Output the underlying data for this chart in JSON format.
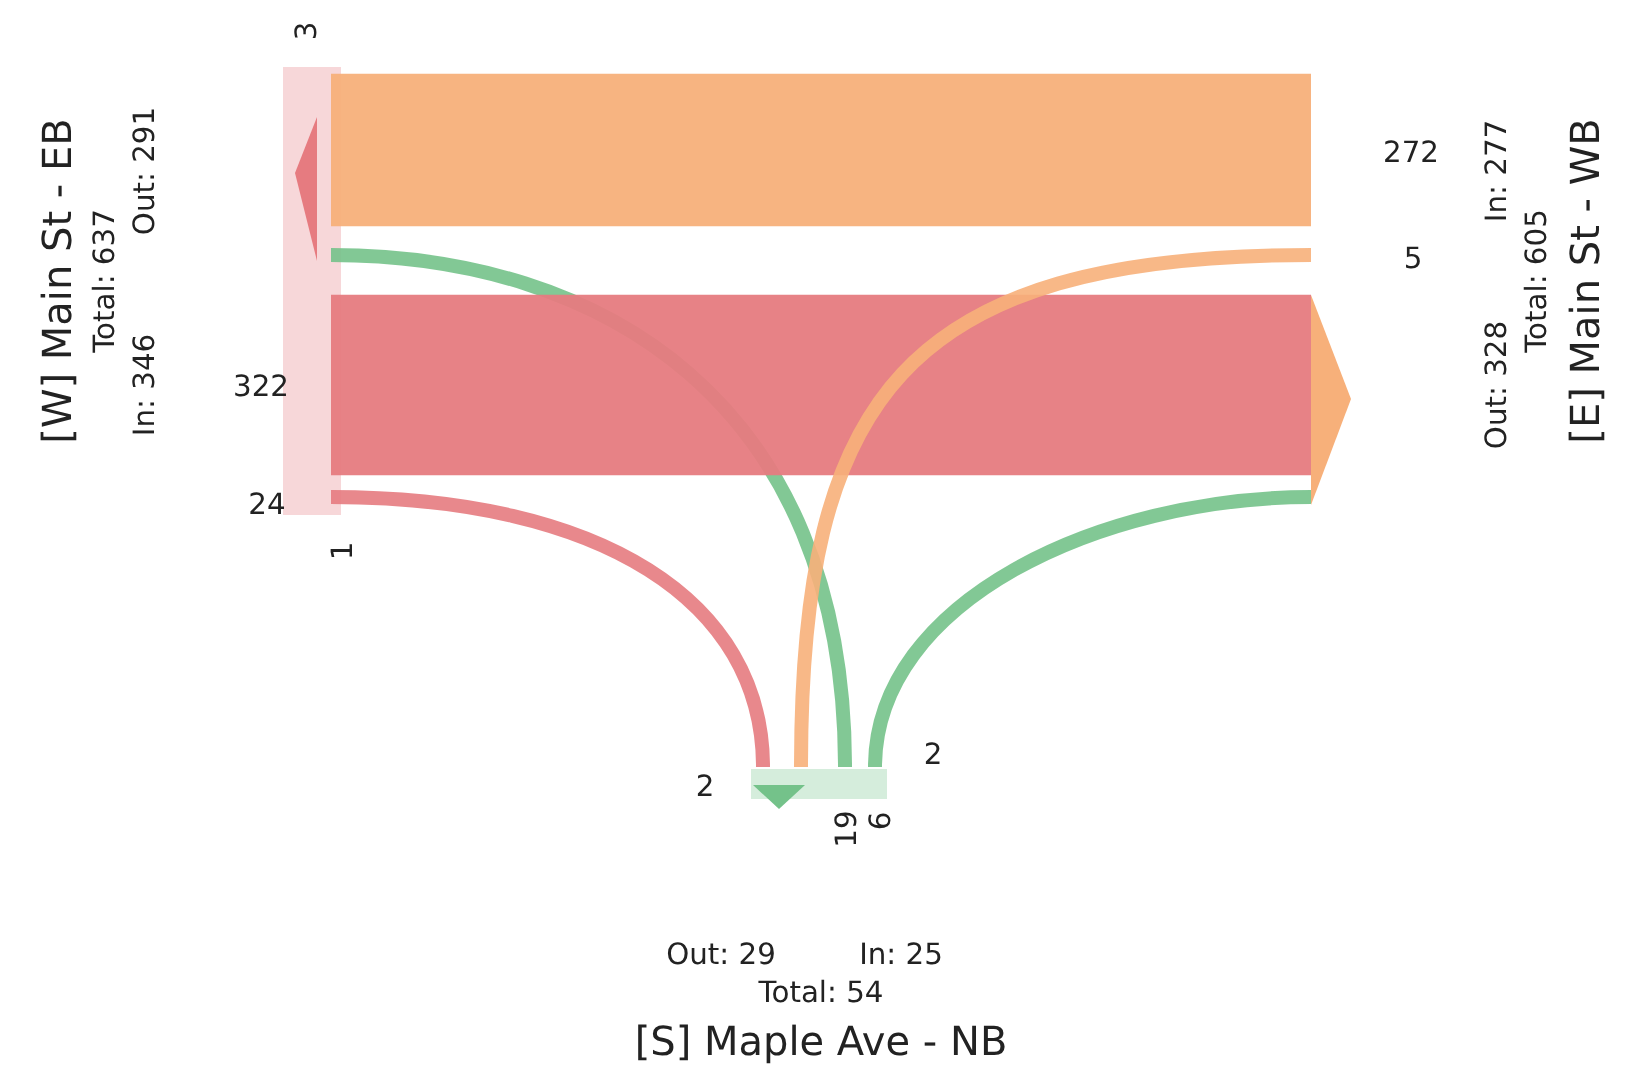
{
  "chart_data": {
    "type": "other",
    "data_labels": true,
    "categories": [
      "[W] Main St - EB",
      "[E] Main St - WB",
      "[S] Maple Ave - NB"
    ],
    "series": [
      {
        "colors": [
          null,
          "#f7b07a",
          "#74c28a"
        ],
        "values": [
          null,
          272,
          19
        ]
      },
      {
        "colors": [
          "#e67b80",
          null,
          "#74c28a"
        ],
        "values": [
          322,
          null,
          6
        ]
      },
      {
        "colors": [
          "#e67b80",
          "#f7b07a",
          null
        ],
        "values": [
          24,
          5,
          null
        ]
      }
    ],
    "annotations": [
      "Out: 291",
      "Total: 637",
      "In: 346",
      "In: 277",
      "Total: 605",
      "Out: 328",
      "Out: 29",
      "In: 25",
      "Total: 54",
      "3",
      "1",
      "2",
      "2"
    ]
  }
}
